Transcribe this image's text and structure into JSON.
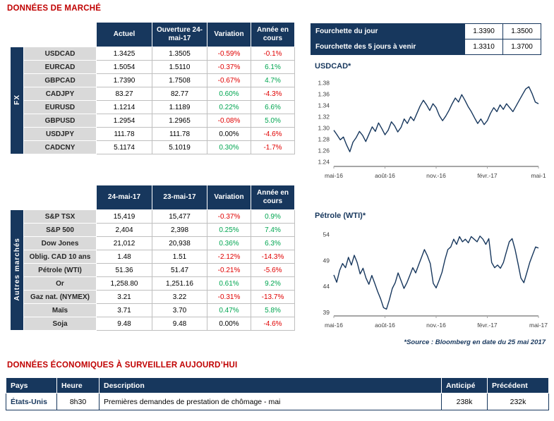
{
  "page": {
    "title_market": "DONNÉES DE MARCHÉ",
    "title_econ": "DONNÉES ÉCONOMIQUES À SURVEILLER AUJOURD’HUI",
    "source_note": "*Source : Bloomberg en date du 25 mai 2017"
  },
  "colors": {
    "navy": "#17375D",
    "section_title_red": "#C00000",
    "negative": "#E00000",
    "positive": "#00A550",
    "label_bg": "#D9D9D9"
  },
  "fx": {
    "sidebar": "FX",
    "headers": [
      "Actuel",
      "Ouverture 24-mai-17",
      "Variation",
      "Année en cours"
    ],
    "rows": [
      {
        "label": "USDCAD",
        "actuel": "1.3425",
        "ouverture": "1.3505",
        "variation": "-0.59%",
        "ytd": "-0.1%"
      },
      {
        "label": "EURCAD",
        "actuel": "1.5054",
        "ouverture": "1.5110",
        "variation": "-0.37%",
        "ytd": "6.1%"
      },
      {
        "label": "GBPCAD",
        "actuel": "1.7390",
        "ouverture": "1.7508",
        "variation": "-0.67%",
        "ytd": "4.7%"
      },
      {
        "label": "CADJPY",
        "actuel": "83.27",
        "ouverture": "82.77",
        "variation": "0.60%",
        "ytd": "-4.3%"
      },
      {
        "label": "EURUSD",
        "actuel": "1.1214",
        "ouverture": "1.1189",
        "variation": "0.22%",
        "ytd": "6.6%"
      },
      {
        "label": "GBPUSD",
        "actuel": "1.2954",
        "ouverture": "1.2965",
        "variation": "-0.08%",
        "ytd": "5.0%"
      },
      {
        "label": "USDJPY",
        "actuel": "111.78",
        "ouverture": "111.78",
        "variation": "0.00%",
        "ytd": "-4.6%"
      },
      {
        "label": "CADCNY",
        "actuel": "5.1174",
        "ouverture": "5.1019",
        "variation": "0.30%",
        "ytd": "-1.7%"
      }
    ]
  },
  "markets": {
    "sidebar": "Autres marchés",
    "headers": [
      "24-mai-17",
      "23-mai-17",
      "Variation",
      "Année en cours"
    ],
    "rows": [
      {
        "label": "S&P TSX",
        "v1": "15,419",
        "v2": "15,477",
        "variation": "-0.37%",
        "ytd": "0.9%"
      },
      {
        "label": "S&P 500",
        "v1": "2,404",
        "v2": "2,398",
        "variation": "0.25%",
        "ytd": "7.4%"
      },
      {
        "label": "Dow Jones",
        "v1": "21,012",
        "v2": "20,938",
        "variation": "0.36%",
        "ytd": "6.3%"
      },
      {
        "label": "Oblig. CAD 10 ans",
        "v1": "1.48",
        "v2": "1.51",
        "variation": "-2.12%",
        "ytd": "-14.3%"
      },
      {
        "label": "Pétrole (WTI)",
        "v1": "51.36",
        "v2": "51.47",
        "variation": "-0.21%",
        "ytd": "-5.6%"
      },
      {
        "label": "Or",
        "v1": "1,258.80",
        "v2": "1,251.16",
        "variation": "0.61%",
        "ytd": "9.2%"
      },
      {
        "label": "Gaz nat. (NYMEX)",
        "v1": "3.21",
        "v2": "3.22",
        "variation": "-0.31%",
        "ytd": "-13.7%"
      },
      {
        "label": "Maïs",
        "v1": "3.71",
        "v2": "3.70",
        "variation": "0.47%",
        "ytd": "5.8%"
      },
      {
        "label": "Soja",
        "v1": "9.48",
        "v2": "9.48",
        "variation": "0.00%",
        "ytd": "-4.6%"
      }
    ]
  },
  "ranges": {
    "rows": [
      {
        "label": "Fourchette du jour",
        "low": "1.3390",
        "high": "1.3500"
      },
      {
        "label": "Fourchette des 5 jours à venir",
        "low": "1.3310",
        "high": "1.3700"
      }
    ]
  },
  "econ": {
    "headers": [
      "Pays",
      "Heure",
      "Description",
      "Anticipé",
      "Précédent"
    ],
    "rows": [
      {
        "pays": "États-Unis",
        "heure": "8h30",
        "description": "Premières demandes de prestation de chômage - mai",
        "anticipe": "238k",
        "precedent": "232k"
      }
    ]
  },
  "chart_data": [
    {
      "type": "line",
      "title": "USDCAD*",
      "x_ticks": [
        "mai-16",
        "août-16",
        "nov.-16",
        "févr.-17",
        "mai-1"
      ],
      "y_ticks": [
        "1.38",
        "1.36",
        "1.34",
        "1.32",
        "1.30",
        "1.28",
        "1.26",
        "1.24"
      ],
      "ylim": [
        1.232,
        1.388
      ],
      "line_color": "#17375D",
      "legend": "none",
      "grid": false,
      "values": [
        1.296,
        1.288,
        1.279,
        1.284,
        1.27,
        1.258,
        1.275,
        1.283,
        1.294,
        1.287,
        1.276,
        1.289,
        1.302,
        1.294,
        1.309,
        1.299,
        1.288,
        1.296,
        1.311,
        1.304,
        1.293,
        1.301,
        1.316,
        1.308,
        1.32,
        1.313,
        1.326,
        1.339,
        1.349,
        1.341,
        1.331,
        1.343,
        1.336,
        1.322,
        1.313,
        1.321,
        1.331,
        1.343,
        1.353,
        1.346,
        1.359,
        1.349,
        1.338,
        1.329,
        1.318,
        1.308,
        1.316,
        1.306,
        1.313,
        1.326,
        1.336,
        1.329,
        1.341,
        1.333,
        1.343,
        1.336,
        1.329,
        1.339,
        1.349,
        1.359,
        1.369,
        1.373,
        1.361,
        1.346,
        1.343
      ]
    },
    {
      "type": "line",
      "title": "Pétrole (WTI)*",
      "x_ticks": [
        "mai-16",
        "août-16",
        "nov.-16",
        "févr.-17",
        "mai-17"
      ],
      "y_ticks": [
        "54",
        "49",
        "44",
        "39"
      ],
      "ylim": [
        38.3,
        55.3
      ],
      "line_color": "#17375D",
      "legend": "none",
      "grid": false,
      "values": [
        46.2,
        44.8,
        47.1,
        48.4,
        47.6,
        49.6,
        48.1,
        50.0,
        48.6,
        46.4,
        47.5,
        45.6,
        44.4,
        46.1,
        44.6,
        43.0,
        41.6,
        39.9,
        39.6,
        41.4,
        43.6,
        44.7,
        46.6,
        45.1,
        43.6,
        44.7,
        46.1,
        47.6,
        46.6,
        48.1,
        49.6,
        51.1,
        49.9,
        48.4,
        44.6,
        43.7,
        45.1,
        46.7,
        49.1,
        51.1,
        51.6,
        53.1,
        52.1,
        53.6,
        52.6,
        53.1,
        52.4,
        53.6,
        53.1,
        52.6,
        53.7,
        53.1,
        52.1,
        53.2,
        48.6,
        47.6,
        48.1,
        47.5,
        48.6,
        50.6,
        52.6,
        53.2,
        51.1,
        48.4,
        45.6,
        44.7,
        46.6,
        48.6,
        50.1,
        51.6,
        51.4
      ]
    }
  ]
}
